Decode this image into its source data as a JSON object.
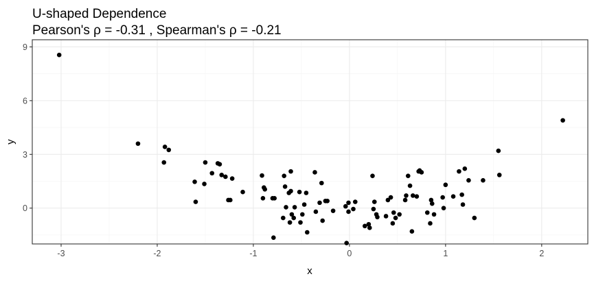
{
  "chart_data": {
    "type": "scatter",
    "title": "U-shaped Dependence",
    "subtitle": "Pearson's ρ = -0.31 , Spearman's ρ = -0.21",
    "xlabel": "x",
    "ylabel": "y",
    "xlim": [
      -3.3,
      2.48
    ],
    "ylim": [
      -2.0,
      9.4
    ],
    "x_ticks": [
      -3,
      -2,
      -1,
      0,
      1,
      2
    ],
    "x_tick_labels": [
      "-3",
      "-2",
      "-1",
      "0",
      "1",
      "2"
    ],
    "y_ticks": [
      0,
      3,
      6,
      9
    ],
    "y_tick_labels": [
      "0",
      "3",
      "6",
      "9"
    ],
    "grid": true,
    "legend": "none",
    "point_color": "#000000",
    "x": [
      -3.02,
      -2.2,
      -1.93,
      -1.92,
      -1.88,
      -1.61,
      -1.6,
      -1.51,
      -1.5,
      -1.43,
      -1.37,
      -1.35,
      -1.33,
      -1.29,
      -1.26,
      -1.24,
      -1.22,
      -1.11,
      -0.91,
      -0.9,
      -0.89,
      -0.88,
      -0.8,
      -0.79,
      -0.78,
      -0.69,
      -0.68,
      -0.67,
      -0.66,
      -0.63,
      -0.62,
      -0.61,
      -0.61,
      -0.6,
      -0.58,
      -0.57,
      -0.52,
      -0.51,
      -0.49,
      -0.47,
      -0.45,
      -0.44,
      -0.36,
      -0.35,
      -0.31,
      -0.29,
      -0.28,
      -0.25,
      -0.23,
      -0.17,
      -0.04,
      -0.03,
      -0.01,
      -0.01,
      0.04,
      0.06,
      0.16,
      0.2,
      0.21,
      0.24,
      0.25,
      0.26,
      0.28,
      0.29,
      0.38,
      0.4,
      0.43,
      0.45,
      0.46,
      0.48,
      0.52,
      0.58,
      0.59,
      0.61,
      0.63,
      0.65,
      0.66,
      0.7,
      0.72,
      0.73,
      0.75,
      0.81,
      0.84,
      0.85,
      0.86,
      0.88,
      0.97,
      0.98,
      1.0,
      1.08,
      1.14,
      1.17,
      1.18,
      1.2,
      1.24,
      1.3,
      1.39,
      1.55,
      1.56,
      2.22
    ],
    "y": [
      8.55,
      3.6,
      2.55,
      3.42,
      3.25,
      1.47,
      0.35,
      1.35,
      2.55,
      1.95,
      2.5,
      2.45,
      1.85,
      1.75,
      0.45,
      0.45,
      1.65,
      0.9,
      1.82,
      0.55,
      1.15,
      1.05,
      0.55,
      -1.65,
      0.55,
      -0.55,
      1.8,
      1.2,
      0.05,
      0.85,
      -0.8,
      0.95,
      2.05,
      -0.35,
      -0.55,
      0.05,
      0.9,
      -0.8,
      -0.35,
      0.2,
      0.85,
      -1.35,
      2.0,
      -0.2,
      0.3,
      1.4,
      -0.7,
      0.4,
      0.4,
      -0.15,
      0.1,
      -1.95,
      -0.2,
      0.3,
      -0.05,
      0.35,
      -1.0,
      -0.9,
      -1.1,
      1.8,
      -0.05,
      0.35,
      -0.35,
      -0.5,
      -0.45,
      0.45,
      0.6,
      -0.85,
      -0.25,
      -0.55,
      -0.35,
      0.45,
      0.7,
      1.8,
      1.25,
      -1.3,
      0.7,
      0.65,
      2.05,
      2.1,
      2.0,
      -0.25,
      -0.85,
      0.45,
      0.25,
      -0.35,
      0.6,
      0.0,
      1.3,
      0.65,
      2.05,
      0.75,
      0.2,
      2.2,
      1.55,
      -0.55,
      1.55,
      3.2,
      1.85,
      4.9
    ]
  }
}
